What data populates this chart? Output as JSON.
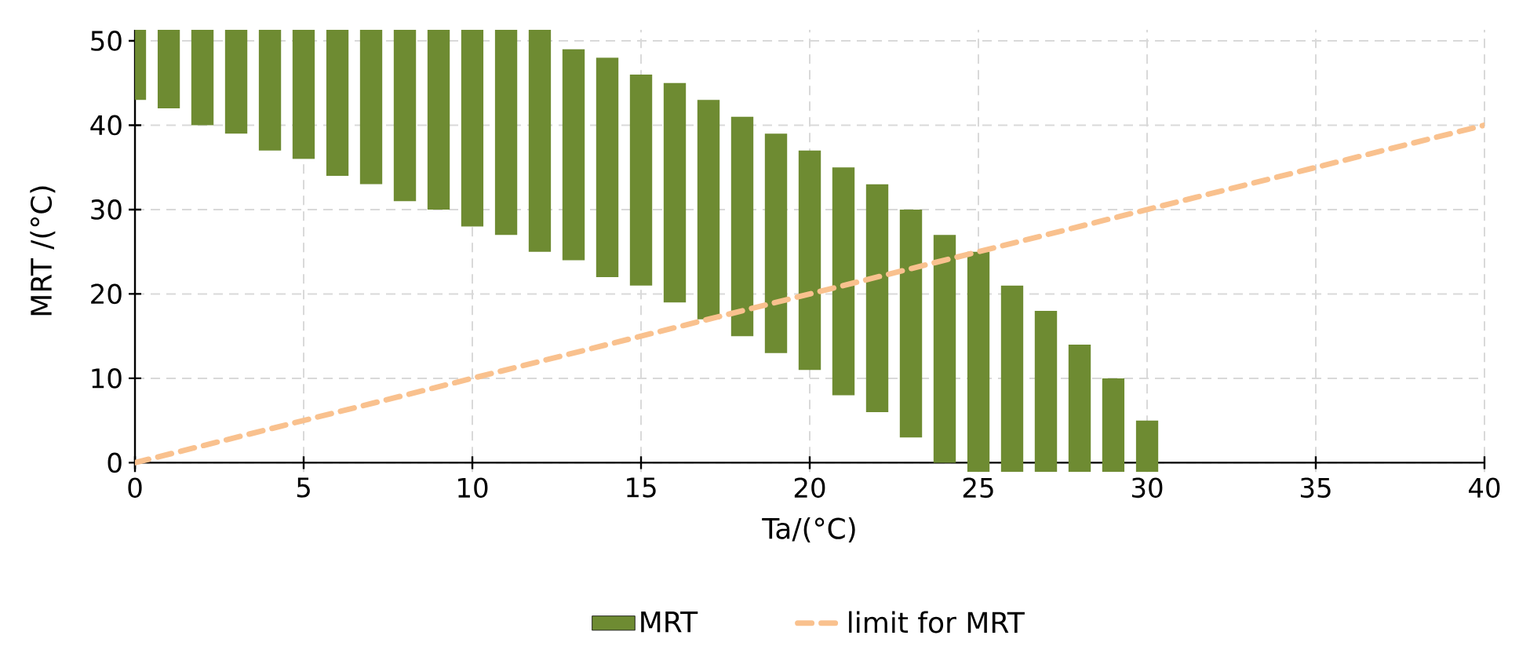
{
  "chart_data": {
    "type": "bar",
    "xlabel": "Ta/(°C)",
    "ylabel": "MRT /(°C)",
    "xlim": [
      0,
      40
    ],
    "xticks": [
      0,
      5,
      10,
      15,
      20,
      25,
      30,
      35,
      40
    ],
    "ylim": [
      -1.1,
      51.3
    ],
    "yticks": [
      0,
      10,
      20,
      30,
      40,
      50
    ],
    "grid": true,
    "legend": "bottom",
    "series": [
      {
        "name": "MRT",
        "color": "#6e8b32",
        "x": [
          0,
          1,
          2,
          3,
          4,
          5,
          6,
          7,
          8,
          9,
          10,
          11,
          12,
          13,
          14,
          15,
          16,
          17,
          18,
          19,
          20,
          21,
          22,
          23,
          24,
          25,
          26,
          27,
          28,
          29,
          30
        ],
        "base": [
          43,
          42,
          40,
          39,
          37,
          36,
          34,
          33,
          31,
          30,
          28,
          27,
          25,
          24,
          22,
          21,
          19,
          17,
          15,
          13,
          11,
          8,
          6,
          3,
          0,
          -1.1,
          -1.1,
          -1.1,
          -1.1,
          -1.1,
          -1.1
        ],
        "values": [
          8.3,
          9.3,
          11.3,
          12.3,
          14.3,
          15.3,
          17.3,
          18.3,
          20.3,
          21.3,
          23.3,
          24.3,
          26.3,
          25,
          26,
          25,
          26,
          26,
          26,
          26,
          26,
          27,
          27,
          27,
          27,
          26.1,
          22.1,
          19.1,
          15.1,
          11.1,
          6.1
        ]
      },
      {
        "name": "limit for MRT",
        "type": "line",
        "color": "#f9c18e",
        "line_style": "dashed",
        "x": [
          0,
          40
        ],
        "values": [
          0,
          40
        ]
      }
    ]
  }
}
